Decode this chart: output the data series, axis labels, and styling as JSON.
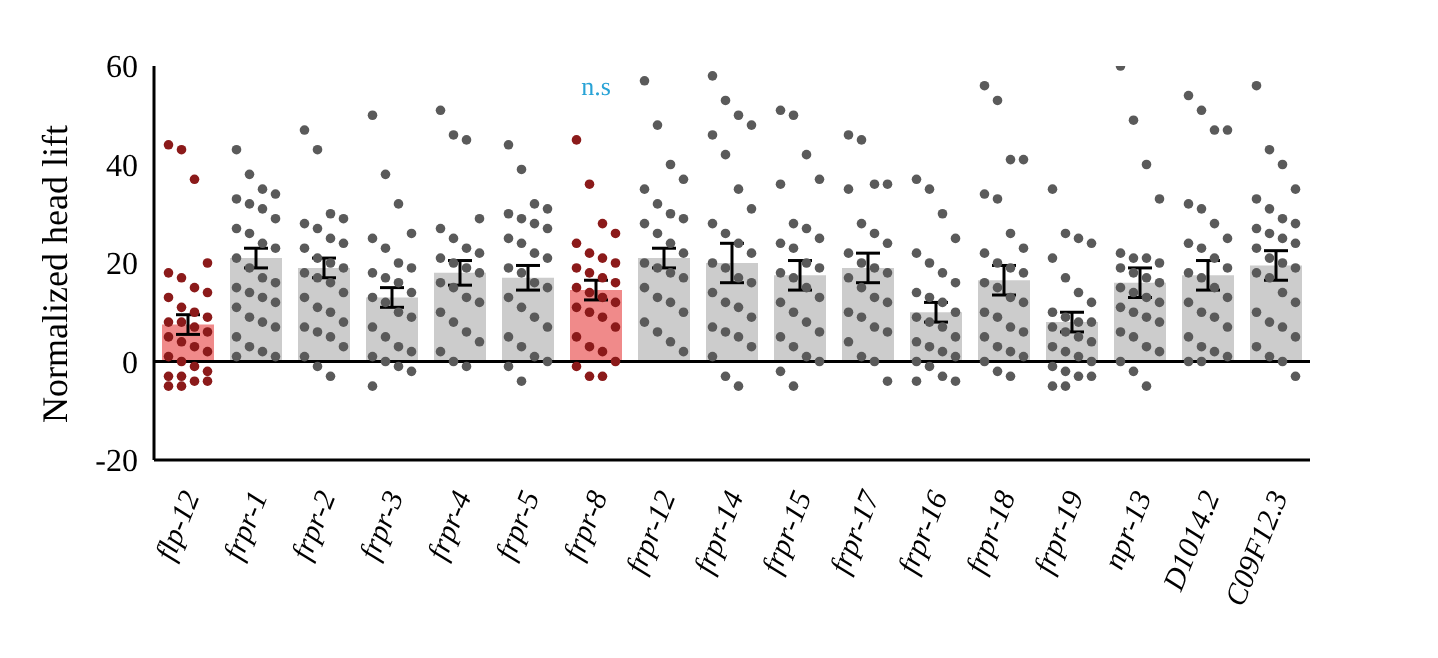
{
  "chart_data": {
    "type": "bar",
    "ylabel": "Normalized head lift",
    "categories": [
      "flp-12",
      "frpr-1",
      "frpr-2",
      "frpr-3",
      "frpr-4",
      "frpr-5",
      "frpr-8",
      "frpr-12",
      "frpr-14",
      "frpr-15",
      "frpr-17",
      "frpr-16",
      "frpr-18",
      "frpr-19",
      "npr-13",
      "D1014.2",
      "C09F12.3"
    ],
    "ylim": [
      -20,
      60
    ],
    "yticks": [
      -20,
      0,
      20,
      40,
      60
    ],
    "grid": false,
    "legend": false,
    "ref_lines": [
      {
        "axis": "y",
        "value": 0,
        "color": "#000000"
      }
    ],
    "annotations": [
      "n.s"
    ],
    "series": [
      {
        "colors": [
          "#f08a8a",
          "#cccccc",
          "#cccccc",
          "#cccccc",
          "#cccccc",
          "#cccccc",
          "#f08a8a",
          "#cccccc",
          "#cccccc",
          "#cccccc",
          "#cccccc",
          "#cccccc",
          "#cccccc",
          "#cccccc",
          "#cccccc",
          "#cccccc",
          "#cccccc"
        ],
        "values": [
          7.5,
          21,
          19,
          13,
          18,
          17,
          14.5,
          21,
          20,
          17.5,
          19,
          10,
          16.5,
          8,
          16,
          17.5,
          19.5
        ],
        "errors": [
          2,
          2,
          2,
          2,
          2.5,
          2.5,
          2,
          2,
          4,
          3,
          3,
          2,
          3,
          2,
          3,
          3,
          3
        ]
      },
      {
        "type": "scatter",
        "color": "#8b1a1a",
        "x": [
          "flp-12",
          "flp-12",
          "flp-12",
          "flp-12",
          "flp-12",
          "flp-12",
          "flp-12",
          "flp-12",
          "flp-12",
          "flp-12",
          "flp-12",
          "flp-12",
          "flp-12",
          "flp-12",
          "flp-12",
          "flp-12",
          "flp-12",
          "flp-12",
          "flp-12",
          "flp-12",
          "flp-12",
          "flp-12",
          "flp-12",
          "flp-12",
          "flp-12",
          "flp-12",
          "flp-12",
          "flp-12",
          "flp-12",
          "flp-12"
        ],
        "values": [
          44,
          43,
          37,
          20,
          18,
          17,
          15,
          14,
          13,
          11,
          10,
          9,
          8,
          8,
          7,
          6,
          5,
          4,
          3,
          2,
          1,
          0,
          -1,
          -2,
          -3,
          -3,
          -4,
          -4,
          -5,
          -5
        ]
      },
      {
        "type": "scatter",
        "color": "#5a5a5a",
        "x": [
          "frpr-1",
          "frpr-1",
          "frpr-1",
          "frpr-1",
          "frpr-1",
          "frpr-1",
          "frpr-1",
          "frpr-1",
          "frpr-1",
          "frpr-1",
          "frpr-1",
          "frpr-1",
          "frpr-1",
          "frpr-1",
          "frpr-1",
          "frpr-1",
          "frpr-1",
          "frpr-1",
          "frpr-1",
          "frpr-1",
          "frpr-1",
          "frpr-1",
          "frpr-1",
          "frpr-1",
          "frpr-1",
          "frpr-1",
          "frpr-1",
          "frpr-1",
          "frpr-1"
        ],
        "values": [
          43,
          38,
          35,
          34,
          33,
          32,
          31,
          29,
          27,
          26,
          24,
          23,
          21,
          19,
          17,
          16,
          15,
          14,
          13,
          12,
          11,
          9,
          8,
          7,
          5,
          3,
          2,
          1,
          1
        ]
      },
      {
        "type": "scatter",
        "color": "#5a5a5a",
        "x": [
          "frpr-2",
          "frpr-2",
          "frpr-2",
          "frpr-2",
          "frpr-2",
          "frpr-2",
          "frpr-2",
          "frpr-2",
          "frpr-2",
          "frpr-2",
          "frpr-2",
          "frpr-2",
          "frpr-2",
          "frpr-2",
          "frpr-2",
          "frpr-2",
          "frpr-2",
          "frpr-2",
          "frpr-2",
          "frpr-2",
          "frpr-2",
          "frpr-2",
          "frpr-2",
          "frpr-2",
          "frpr-2",
          "frpr-2",
          "frpr-2"
        ],
        "values": [
          47,
          43,
          30,
          29,
          28,
          27,
          25,
          24,
          23,
          21,
          20,
          19,
          18,
          17,
          16,
          14,
          13,
          11,
          10,
          8,
          7,
          6,
          5,
          3,
          1,
          -1,
          -3
        ]
      },
      {
        "type": "scatter",
        "color": "#5a5a5a",
        "x": [
          "frpr-3",
          "frpr-3",
          "frpr-3",
          "frpr-3",
          "frpr-3",
          "frpr-3",
          "frpr-3",
          "frpr-3",
          "frpr-3",
          "frpr-3",
          "frpr-3",
          "frpr-3",
          "frpr-3",
          "frpr-3",
          "frpr-3",
          "frpr-3",
          "frpr-3",
          "frpr-3",
          "frpr-3",
          "frpr-3",
          "frpr-3",
          "frpr-3",
          "frpr-3",
          "frpr-3",
          "frpr-3"
        ],
        "values": [
          50,
          38,
          32,
          26,
          25,
          23,
          20,
          19,
          18,
          17,
          16,
          14,
          13,
          12,
          10,
          9,
          7,
          5,
          3,
          2,
          1,
          0,
          -1,
          -2,
          -5
        ]
      },
      {
        "type": "scatter",
        "color": "#5a5a5a",
        "x": [
          "frpr-4",
          "frpr-4",
          "frpr-4",
          "frpr-4",
          "frpr-4",
          "frpr-4",
          "frpr-4",
          "frpr-4",
          "frpr-4",
          "frpr-4",
          "frpr-4",
          "frpr-4",
          "frpr-4",
          "frpr-4",
          "frpr-4",
          "frpr-4",
          "frpr-4",
          "frpr-4",
          "frpr-4",
          "frpr-4",
          "frpr-4",
          "frpr-4",
          "frpr-4"
        ],
        "values": [
          51,
          46,
          45,
          29,
          27,
          25,
          23,
          22,
          21,
          20,
          19,
          18,
          16,
          15,
          13,
          12,
          10,
          8,
          6,
          4,
          2,
          0,
          -1
        ]
      },
      {
        "type": "scatter",
        "color": "#5a5a5a",
        "x": [
          "frpr-5",
          "frpr-5",
          "frpr-5",
          "frpr-5",
          "frpr-5",
          "frpr-5",
          "frpr-5",
          "frpr-5",
          "frpr-5",
          "frpr-5",
          "frpr-5",
          "frpr-5",
          "frpr-5",
          "frpr-5",
          "frpr-5",
          "frpr-5",
          "frpr-5",
          "frpr-5",
          "frpr-5",
          "frpr-5",
          "frpr-5",
          "frpr-5",
          "frpr-5",
          "frpr-5",
          "frpr-5",
          "frpr-5"
        ],
        "values": [
          44,
          39,
          32,
          31,
          30,
          29,
          28,
          27,
          25,
          24,
          22,
          21,
          19,
          18,
          16,
          15,
          13,
          11,
          9,
          7,
          5,
          3,
          1,
          0,
          -1,
          -4
        ]
      },
      {
        "type": "scatter",
        "color": "#8b1a1a",
        "x": [
          "frpr-8",
          "frpr-8",
          "frpr-8",
          "frpr-8",
          "frpr-8",
          "frpr-8",
          "frpr-8",
          "frpr-8",
          "frpr-8",
          "frpr-8",
          "frpr-8",
          "frpr-8",
          "frpr-8",
          "frpr-8",
          "frpr-8",
          "frpr-8",
          "frpr-8",
          "frpr-8",
          "frpr-8",
          "frpr-8",
          "frpr-8",
          "frpr-8",
          "frpr-8",
          "frpr-8",
          "frpr-8",
          "frpr-8",
          "frpr-8"
        ],
        "values": [
          45,
          36,
          28,
          26,
          24,
          22,
          21,
          20,
          19,
          18,
          17,
          16,
          15,
          14,
          13,
          12,
          11,
          10,
          9,
          7,
          5,
          3,
          2,
          0,
          -1,
          -3,
          -3
        ]
      },
      {
        "type": "scatter",
        "color": "#5a5a5a",
        "x": [
          "frpr-12",
          "frpr-12",
          "frpr-12",
          "frpr-12",
          "frpr-12",
          "frpr-12",
          "frpr-12",
          "frpr-12",
          "frpr-12",
          "frpr-12",
          "frpr-12",
          "frpr-12",
          "frpr-12",
          "frpr-12",
          "frpr-12",
          "frpr-12",
          "frpr-12",
          "frpr-12",
          "frpr-12",
          "frpr-12",
          "frpr-12",
          "frpr-12",
          "frpr-12",
          "frpr-12"
        ],
        "values": [
          57,
          48,
          40,
          37,
          35,
          32,
          30,
          29,
          28,
          26,
          24,
          22,
          20,
          19,
          18,
          17,
          15,
          13,
          12,
          10,
          8,
          6,
          4,
          2
        ]
      },
      {
        "type": "scatter",
        "color": "#5a5a5a",
        "x": [
          "frpr-14",
          "frpr-14",
          "frpr-14",
          "frpr-14",
          "frpr-14",
          "frpr-14",
          "frpr-14",
          "frpr-14",
          "frpr-14",
          "frpr-14",
          "frpr-14",
          "frpr-14",
          "frpr-14",
          "frpr-14",
          "frpr-14",
          "frpr-14",
          "frpr-14",
          "frpr-14",
          "frpr-14",
          "frpr-14",
          "frpr-14",
          "frpr-14",
          "frpr-14",
          "frpr-14",
          "frpr-14",
          "frpr-14",
          "frpr-14"
        ],
        "values": [
          58,
          53,
          50,
          48,
          46,
          42,
          35,
          31,
          28,
          26,
          24,
          22,
          20,
          19,
          17,
          16,
          14,
          12,
          11,
          9,
          7,
          6,
          5,
          3,
          1,
          -3,
          -5
        ]
      },
      {
        "type": "scatter",
        "color": "#5a5a5a",
        "x": [
          "frpr-15",
          "frpr-15",
          "frpr-15",
          "frpr-15",
          "frpr-15",
          "frpr-15",
          "frpr-15",
          "frpr-15",
          "frpr-15",
          "frpr-15",
          "frpr-15",
          "frpr-15",
          "frpr-15",
          "frpr-15",
          "frpr-15",
          "frpr-15",
          "frpr-15",
          "frpr-15",
          "frpr-15",
          "frpr-15",
          "frpr-15",
          "frpr-15",
          "frpr-15",
          "frpr-15",
          "frpr-15",
          "frpr-15"
        ],
        "values": [
          51,
          50,
          42,
          37,
          36,
          28,
          27,
          25,
          24,
          23,
          20,
          19,
          18,
          17,
          15,
          13,
          12,
          10,
          8,
          6,
          5,
          3,
          1,
          0,
          -2,
          -5
        ]
      },
      {
        "type": "scatter",
        "color": "#5a5a5a",
        "x": [
          "frpr-17",
          "frpr-17",
          "frpr-17",
          "frpr-17",
          "frpr-17",
          "frpr-17",
          "frpr-17",
          "frpr-17",
          "frpr-17",
          "frpr-17",
          "frpr-17",
          "frpr-17",
          "frpr-17",
          "frpr-17",
          "frpr-17",
          "frpr-17",
          "frpr-17",
          "frpr-17",
          "frpr-17",
          "frpr-17",
          "frpr-17",
          "frpr-17",
          "frpr-17",
          "frpr-17"
        ],
        "values": [
          46,
          45,
          36,
          36,
          35,
          28,
          26,
          24,
          22,
          20,
          19,
          18,
          17,
          15,
          13,
          12,
          10,
          9,
          7,
          6,
          4,
          1,
          0,
          -4
        ]
      },
      {
        "type": "scatter",
        "color": "#5a5a5a",
        "x": [
          "frpr-16",
          "frpr-16",
          "frpr-16",
          "frpr-16",
          "frpr-16",
          "frpr-16",
          "frpr-16",
          "frpr-16",
          "frpr-16",
          "frpr-16",
          "frpr-16",
          "frpr-16",
          "frpr-16",
          "frpr-16",
          "frpr-16",
          "frpr-16",
          "frpr-16",
          "frpr-16",
          "frpr-16",
          "frpr-16",
          "frpr-16",
          "frpr-16",
          "frpr-16",
          "frpr-16",
          "frpr-16"
        ],
        "values": [
          37,
          35,
          30,
          25,
          22,
          20,
          18,
          16,
          14,
          13,
          12,
          10,
          9,
          8,
          7,
          5,
          4,
          3,
          2,
          1,
          0,
          -1,
          -3,
          -4,
          -4
        ]
      },
      {
        "type": "scatter",
        "color": "#5a5a5a",
        "x": [
          "frpr-18",
          "frpr-18",
          "frpr-18",
          "frpr-18",
          "frpr-18",
          "frpr-18",
          "frpr-18",
          "frpr-18",
          "frpr-18",
          "frpr-18",
          "frpr-18",
          "frpr-18",
          "frpr-18",
          "frpr-18",
          "frpr-18",
          "frpr-18",
          "frpr-18",
          "frpr-18",
          "frpr-18",
          "frpr-18",
          "frpr-18",
          "frpr-18",
          "frpr-18",
          "frpr-18",
          "frpr-18",
          "frpr-18",
          "frpr-18"
        ],
        "values": [
          56,
          53,
          41,
          41,
          34,
          33,
          26,
          23,
          22,
          20,
          19,
          18,
          16,
          15,
          13,
          12,
          10,
          9,
          7,
          6,
          5,
          3,
          2,
          1,
          0,
          -2,
          -3
        ]
      },
      {
        "type": "scatter",
        "color": "#5a5a5a",
        "x": [
          "frpr-19",
          "frpr-19",
          "frpr-19",
          "frpr-19",
          "frpr-19",
          "frpr-19",
          "frpr-19",
          "frpr-19",
          "frpr-19",
          "frpr-19",
          "frpr-19",
          "frpr-19",
          "frpr-19",
          "frpr-19",
          "frpr-19",
          "frpr-19",
          "frpr-19",
          "frpr-19",
          "frpr-19",
          "frpr-19",
          "frpr-19",
          "frpr-19",
          "frpr-19",
          "frpr-19",
          "frpr-19",
          "frpr-19"
        ],
        "values": [
          35,
          26,
          25,
          24,
          21,
          17,
          14,
          12,
          10,
          9,
          8,
          8,
          7,
          6,
          5,
          4,
          3,
          2,
          1,
          0,
          -1,
          -2,
          -3,
          -3,
          -5,
          -5
        ]
      },
      {
        "type": "scatter",
        "color": "#5a5a5a",
        "x": [
          "npr-13",
          "npr-13",
          "npr-13",
          "npr-13",
          "npr-13",
          "npr-13",
          "npr-13",
          "npr-13",
          "npr-13",
          "npr-13",
          "npr-13",
          "npr-13",
          "npr-13",
          "npr-13",
          "npr-13",
          "npr-13",
          "npr-13",
          "npr-13",
          "npr-13",
          "npr-13",
          "npr-13",
          "npr-13",
          "npr-13",
          "npr-13",
          "npr-13",
          "npr-13",
          "npr-13"
        ],
        "values": [
          60,
          49,
          40,
          33,
          22,
          21,
          21,
          20,
          19,
          18,
          17,
          16,
          15,
          14,
          13,
          12,
          11,
          10,
          9,
          8,
          6,
          5,
          3,
          2,
          0,
          -2,
          -5
        ]
      },
      {
        "type": "scatter",
        "color": "#5a5a5a",
        "x": [
          "D1014.2",
          "D1014.2",
          "D1014.2",
          "D1014.2",
          "D1014.2",
          "D1014.2",
          "D1014.2",
          "D1014.2",
          "D1014.2",
          "D1014.2",
          "D1014.2",
          "D1014.2",
          "D1014.2",
          "D1014.2",
          "D1014.2",
          "D1014.2",
          "D1014.2",
          "D1014.2",
          "D1014.2",
          "D1014.2",
          "D1014.2",
          "D1014.2",
          "D1014.2",
          "D1014.2",
          "D1014.2",
          "D1014.2"
        ],
        "values": [
          54,
          51,
          47,
          47,
          32,
          31,
          28,
          25,
          24,
          23,
          21,
          19,
          18,
          17,
          15,
          13,
          12,
          10,
          9,
          7,
          5,
          3,
          2,
          1,
          0,
          0
        ]
      },
      {
        "type": "scatter",
        "color": "#5a5a5a",
        "x": [
          "C09F12.3",
          "C09F12.3",
          "C09F12.3",
          "C09F12.3",
          "C09F12.3",
          "C09F12.3",
          "C09F12.3",
          "C09F12.3",
          "C09F12.3",
          "C09F12.3",
          "C09F12.3",
          "C09F12.3",
          "C09F12.3",
          "C09F12.3",
          "C09F12.3",
          "C09F12.3",
          "C09F12.3",
          "C09F12.3",
          "C09F12.3",
          "C09F12.3",
          "C09F12.3",
          "C09F12.3",
          "C09F12.3",
          "C09F12.3",
          "C09F12.3",
          "C09F12.3",
          "C09F12.3",
          "C09F12.3"
        ],
        "values": [
          56,
          43,
          40,
          35,
          33,
          31,
          29,
          28,
          27,
          26,
          25,
          24,
          23,
          21,
          20,
          19,
          18,
          17,
          14,
          12,
          10,
          8,
          7,
          5,
          3,
          1,
          0,
          -3
        ]
      }
    ]
  }
}
